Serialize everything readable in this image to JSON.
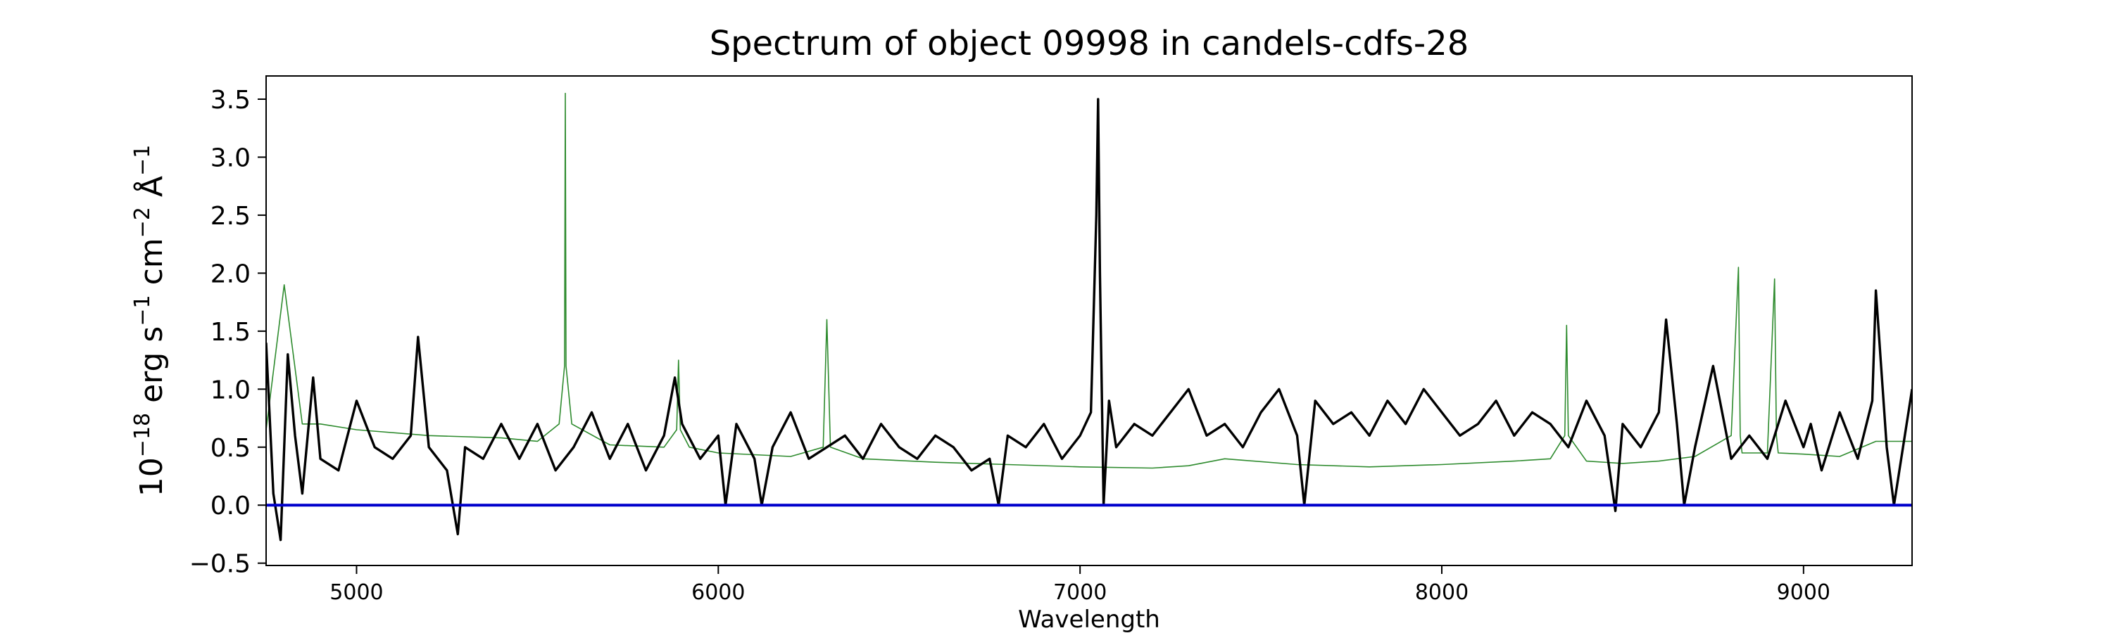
{
  "chart_data": {
    "type": "line",
    "title": "Spectrum of object 09998 in candels-cdfs-28",
    "xlabel": "Wavelength",
    "ylabel_parts": {
      "base": "10",
      "exp1": "−18",
      "mid1": " erg s",
      "exp2": "−1",
      "mid2": " cm",
      "exp3": "−2",
      "mid3": " Å",
      "exp4": "−1"
    },
    "xlim": [
      4750,
      9300
    ],
    "ylim": [
      -0.52,
      3.7
    ],
    "x_ticks": [
      5000,
      6000,
      7000,
      8000,
      9000
    ],
    "x_tick_labels": [
      "5000",
      "6000",
      "7000",
      "8000",
      "9000"
    ],
    "y_ticks": [
      -0.5,
      0.0,
      0.5,
      1.0,
      1.5,
      2.0,
      2.5,
      3.0,
      3.5
    ],
    "y_tick_labels": [
      "−0.5",
      "0.0",
      "0.5",
      "1.0",
      "1.5",
      "2.0",
      "2.5",
      "3.0",
      "3.5"
    ],
    "series": [
      {
        "role": "sky-model",
        "color": "#2e8b2e",
        "x": [
          4750,
          4800,
          4850,
          4900,
          5000,
          5200,
          5400,
          5500,
          5560,
          5575,
          5577,
          5579,
          5595,
          5700,
          5850,
          5885,
          5890,
          5895,
          5920,
          6000,
          6200,
          6290,
          6300,
          6310,
          6400,
          6600,
          6800,
          7000,
          7200,
          7300,
          7400,
          7600,
          7800,
          8000,
          8200,
          8300,
          8340,
          8345,
          8350,
          8400,
          8500,
          8600,
          8700,
          8800,
          8820,
          8825,
          8830,
          8900,
          8920,
          8925,
          8930,
          9000,
          9100,
          9200,
          9300
        ],
        "y": [
          0.65,
          1.9,
          0.7,
          0.7,
          0.65,
          0.6,
          0.58,
          0.55,
          0.7,
          1.2,
          3.55,
          1.2,
          0.7,
          0.52,
          0.5,
          0.65,
          1.25,
          0.65,
          0.5,
          0.45,
          0.42,
          0.5,
          1.6,
          0.5,
          0.4,
          0.37,
          0.35,
          0.33,
          0.32,
          0.34,
          0.4,
          0.35,
          0.33,
          0.35,
          0.38,
          0.4,
          0.6,
          1.55,
          0.6,
          0.38,
          0.36,
          0.38,
          0.42,
          0.6,
          2.05,
          0.6,
          0.45,
          0.45,
          1.95,
          0.6,
          0.45,
          0.44,
          0.42,
          0.55,
          0.55
        ]
      },
      {
        "role": "object-flux",
        "color": "#000000",
        "x": [
          4750,
          4770,
          4790,
          4810,
          4830,
          4850,
          4880,
          4900,
          4950,
          5000,
          5050,
          5100,
          5150,
          5170,
          5200,
          5250,
          5280,
          5300,
          5350,
          5400,
          5450,
          5500,
          5550,
          5600,
          5650,
          5700,
          5750,
          5800,
          5850,
          5880,
          5900,
          5950,
          6000,
          6020,
          6050,
          6100,
          6120,
          6150,
          6200,
          6250,
          6300,
          6350,
          6400,
          6450,
          6500,
          6550,
          6600,
          6650,
          6700,
          6750,
          6775,
          6800,
          6850,
          6900,
          6950,
          7000,
          7030,
          7045,
          7050,
          7055,
          7065,
          7080,
          7100,
          7150,
          7200,
          7250,
          7300,
          7350,
          7400,
          7450,
          7500,
          7550,
          7600,
          7620,
          7650,
          7700,
          7750,
          7800,
          7850,
          7900,
          7950,
          8000,
          8050,
          8100,
          8150,
          8200,
          8250,
          8300,
          8350,
          8400,
          8450,
          8480,
          8500,
          8550,
          8600,
          8620,
          8650,
          8670,
          8700,
          8750,
          8800,
          8850,
          8900,
          8950,
          9000,
          9020,
          9050,
          9100,
          9150,
          9190,
          9200,
          9230,
          9250,
          9300
        ],
        "y": [
          1.4,
          0.1,
          -0.3,
          1.3,
          0.6,
          0.1,
          1.1,
          0.4,
          0.3,
          0.9,
          0.5,
          0.4,
          0.6,
          1.45,
          0.5,
          0.3,
          -0.25,
          0.5,
          0.4,
          0.7,
          0.4,
          0.7,
          0.3,
          0.5,
          0.8,
          0.4,
          0.7,
          0.3,
          0.6,
          1.1,
          0.7,
          0.4,
          0.6,
          0.0,
          0.7,
          0.4,
          0.0,
          0.5,
          0.8,
          0.4,
          0.5,
          0.6,
          0.4,
          0.7,
          0.5,
          0.4,
          0.6,
          0.5,
          0.3,
          0.4,
          0.0,
          0.6,
          0.5,
          0.7,
          0.4,
          0.6,
          0.8,
          2.5,
          3.5,
          2.0,
          0.0,
          0.9,
          0.5,
          0.7,
          0.6,
          0.8,
          1.0,
          0.6,
          0.7,
          0.5,
          0.8,
          1.0,
          0.6,
          0.0,
          0.9,
          0.7,
          0.8,
          0.6,
          0.9,
          0.7,
          1.0,
          0.8,
          0.6,
          0.7,
          0.9,
          0.6,
          0.8,
          0.7,
          0.5,
          0.9,
          0.6,
          -0.05,
          0.7,
          0.5,
          0.8,
          1.6,
          0.7,
          0.0,
          0.5,
          1.2,
          0.4,
          0.6,
          0.4,
          0.9,
          0.5,
          0.7,
          0.3,
          0.8,
          0.4,
          0.9,
          1.85,
          0.5,
          0.0,
          1.0
        ]
      },
      {
        "role": "zero-line",
        "color": "#0000cc",
        "x": [
          4750,
          9300
        ],
        "y": [
          0.0,
          0.0
        ]
      }
    ]
  }
}
